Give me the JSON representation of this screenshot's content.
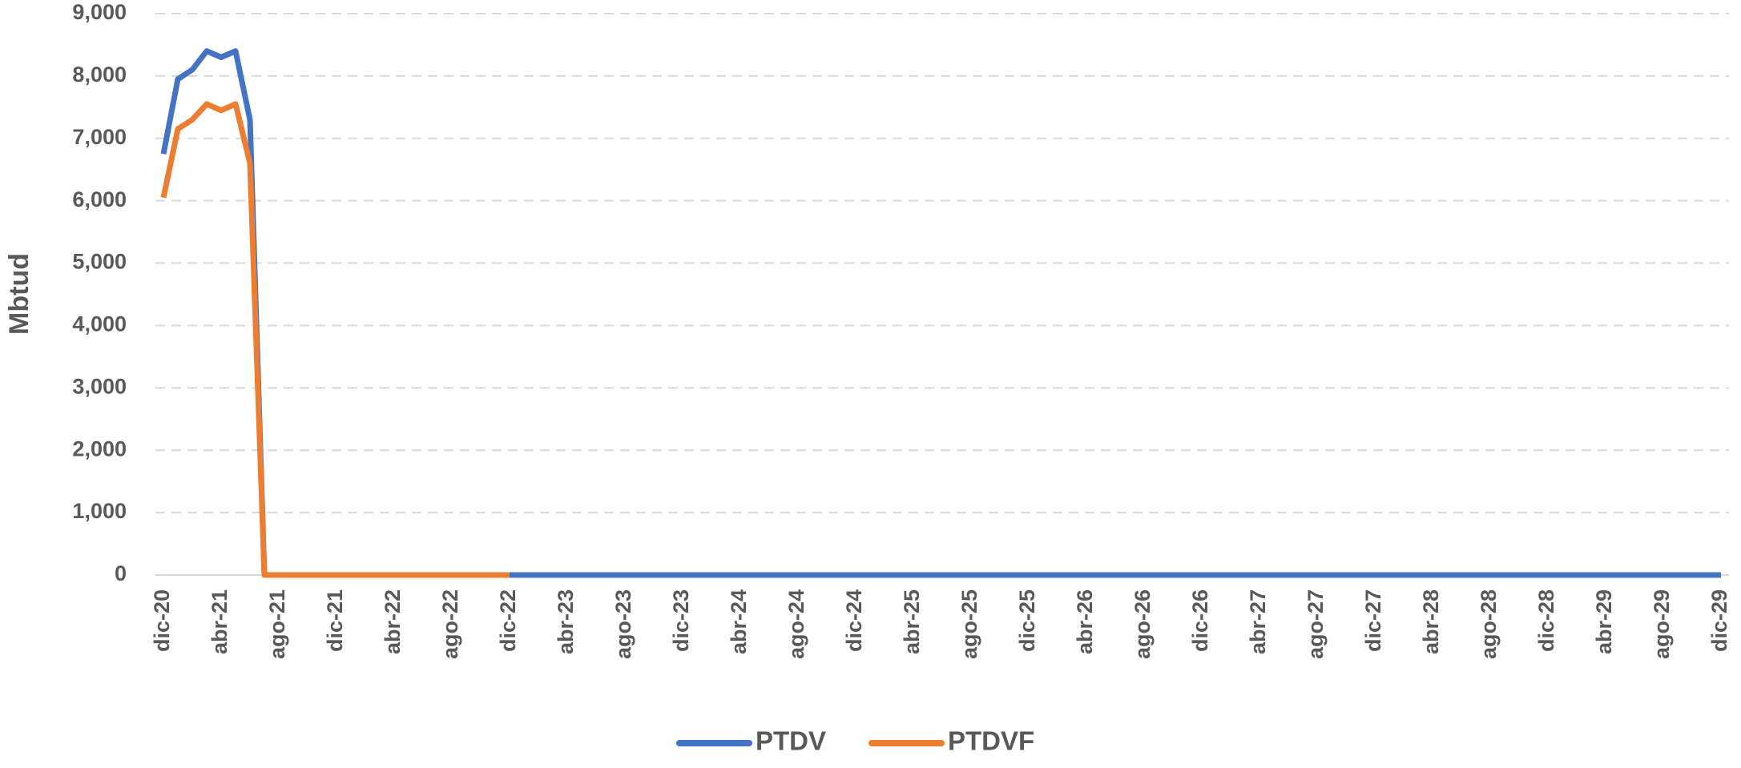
{
  "chart_data": {
    "type": "line",
    "y_label": "Mbtud",
    "categories": [
      "dic-20",
      null,
      null,
      null,
      "abr-21",
      null,
      null,
      null,
      "ago-21",
      null,
      null,
      null,
      "dic-21",
      null,
      null,
      null,
      "abr-22",
      null,
      null,
      null,
      "ago-22",
      null,
      null,
      null,
      "dic-22",
      null,
      null,
      null,
      "abr-23",
      null,
      null,
      null,
      "ago-23",
      null,
      null,
      null,
      "dic-23",
      null,
      null,
      null,
      "abr-24",
      null,
      null,
      null,
      "ago-24",
      null,
      null,
      null,
      "dic-24",
      null,
      null,
      null,
      "abr-25",
      null,
      null,
      null,
      "ago-25",
      null,
      null,
      null,
      "dic-25",
      null,
      null,
      null,
      "abr-26",
      null,
      null,
      null,
      "ago-26",
      null,
      null,
      null,
      "dic-26",
      null,
      null,
      null,
      "abr-27",
      null,
      null,
      null,
      "ago-27",
      null,
      null,
      null,
      "dic-27",
      null,
      null,
      null,
      "abr-28",
      null,
      null,
      null,
      "ago-28",
      null,
      null,
      null,
      "dic-28",
      null,
      null,
      null,
      "abr-29",
      null,
      null,
      null,
      "ago-29",
      null,
      null,
      null,
      "dic-29"
    ],
    "series": [
      {
        "name": "PTDV",
        "color": "#4472c4",
        "values": [
          6750,
          7950,
          8100,
          8400,
          8300,
          8400,
          7300,
          0,
          0,
          0,
          0,
          0,
          0,
          0,
          0,
          0,
          0,
          0,
          0,
          0,
          0,
          0,
          0,
          0,
          0,
          0,
          0,
          0,
          0,
          0,
          0,
          0,
          0,
          0,
          0,
          0,
          0,
          0,
          0,
          0,
          0,
          0,
          0,
          0,
          0,
          0,
          0,
          0,
          0,
          0,
          0,
          0,
          0,
          0,
          0,
          0,
          0,
          0,
          0,
          0,
          0,
          0,
          0,
          0,
          0,
          0,
          0,
          0,
          0,
          0,
          0,
          0,
          0,
          0,
          0,
          0,
          0,
          0,
          0,
          0,
          0,
          0,
          0,
          0,
          0,
          0,
          0,
          0,
          0,
          0,
          0,
          0,
          0,
          0,
          0,
          0,
          0,
          0,
          0,
          0,
          0,
          0,
          0,
          0,
          0,
          0,
          0,
          0,
          0
        ]
      },
      {
        "name": "PTDVF",
        "color": "#ed7d31",
        "values": [
          6050,
          7150,
          7300,
          7550,
          7450,
          7550,
          6600,
          0,
          0,
          0,
          0,
          0,
          0,
          0,
          0,
          0,
          0,
          0,
          0,
          0,
          0,
          0,
          0,
          0,
          0,
          null,
          null,
          null,
          null,
          null,
          null,
          null,
          null,
          null,
          null,
          null,
          null,
          null,
          null,
          null,
          null,
          null,
          null,
          null,
          null,
          null,
          null,
          null,
          null,
          null,
          null,
          null,
          null,
          null,
          null,
          null,
          null,
          null,
          null,
          null,
          null,
          null,
          null,
          null,
          null,
          null,
          null,
          null,
          null,
          null,
          null,
          null,
          null,
          null,
          null,
          null,
          null,
          null,
          null,
          null,
          null,
          null,
          null,
          null,
          null,
          null,
          null,
          null,
          null,
          null,
          null,
          null,
          null,
          null,
          null,
          null,
          null,
          null,
          null,
          null,
          null,
          null,
          null,
          null,
          null,
          null,
          null,
          null,
          null
        ]
      }
    ],
    "ylim": [
      0,
      9000
    ],
    "yticks": [
      0,
      {
        "value": 1000,
        "label": "1,000"
      },
      {
        "value": 2000,
        "label": "2,000"
      },
      {
        "value": 3000,
        "label": "3,000"
      },
      {
        "value": 4000,
        "label": "4,000"
      },
      {
        "value": 5000,
        "label": "5,000"
      },
      {
        "value": 6000,
        "label": "6,000"
      },
      {
        "value": 7000,
        "label": "7,000"
      },
      {
        "value": 8000,
        "label": "8,000"
      },
      {
        "value": 9000,
        "label": "9,000"
      }
    ],
    "grid": true,
    "legend": "bottom"
  }
}
